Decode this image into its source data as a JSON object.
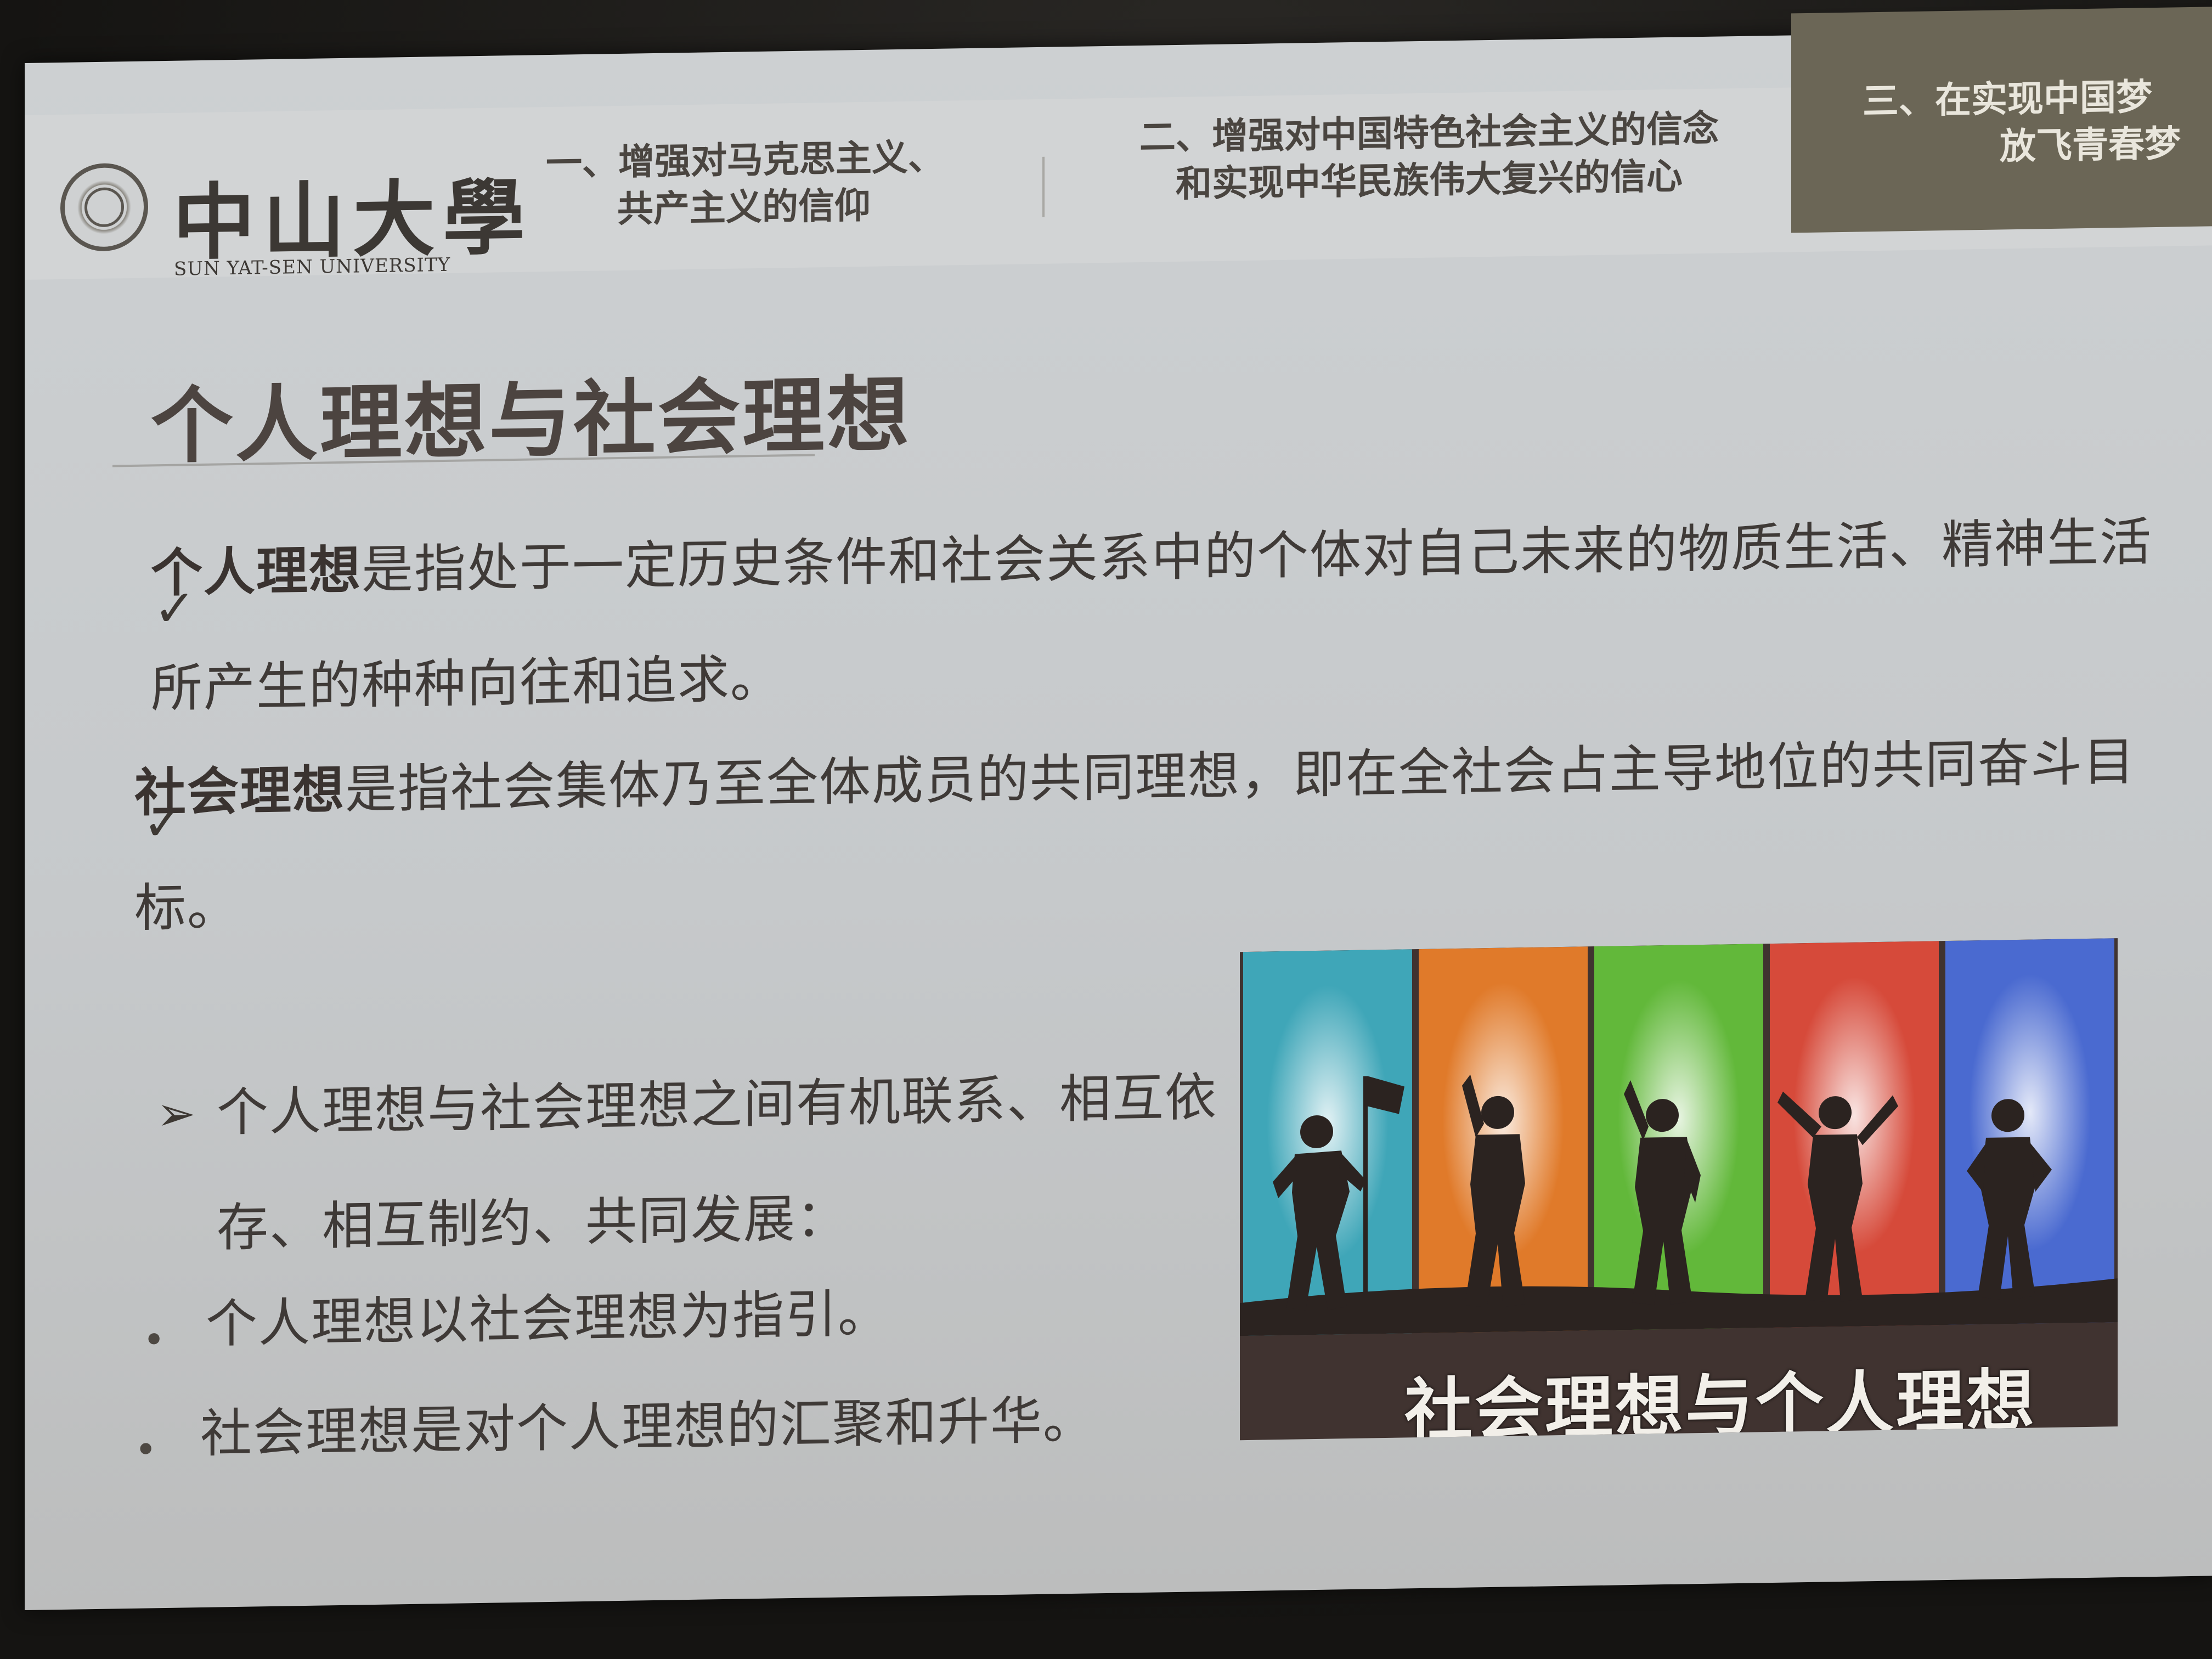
{
  "logo": {
    "name_cn": "中山大學",
    "name_en": "SUN YAT-SEN UNIVERSITY"
  },
  "nav": {
    "tab1": {
      "line1": "一、增强对马克思主义、",
      "line2": "共产主义的信仰"
    },
    "tab2": {
      "line1": "二、增强对中国特色社会主义的信念",
      "line2": "和实现中华民族伟大复兴的信心"
    },
    "tab3": {
      "line1": "三、在实现中国梦",
      "line2": "放飞青春梦"
    }
  },
  "slide": {
    "title": "个人理想与社会理想",
    "points": [
      {
        "mark": "✓",
        "term": "个人理想",
        "text": "是指处于一定历史条件和社会关系中的个体对自己未来的物质生活、精神生活所产生的种种向往和追求。"
      },
      {
        "mark": "✓",
        "term": "社会理想",
        "text": "是指社会集体乃至全体成员的共同理想，即在全社会占主导地位的共同奋斗目标。"
      }
    ],
    "relation": {
      "mark": "➢",
      "text": "个人理想与社会理想之间有机联系、相互依存、相互制约、共同发展：",
      "bullets": [
        "个人理想以社会理想为指引。",
        "社会理想是对个人理想的汇聚和升华。"
      ]
    },
    "figure_caption": "社会理想与个人理想"
  },
  "colors": {
    "header_active_bg": "#6b6656",
    "stripes": [
      "#3fa6b8",
      "#e07a2a",
      "#62b83a",
      "#d64a3a",
      "#4a6ad0"
    ]
  }
}
